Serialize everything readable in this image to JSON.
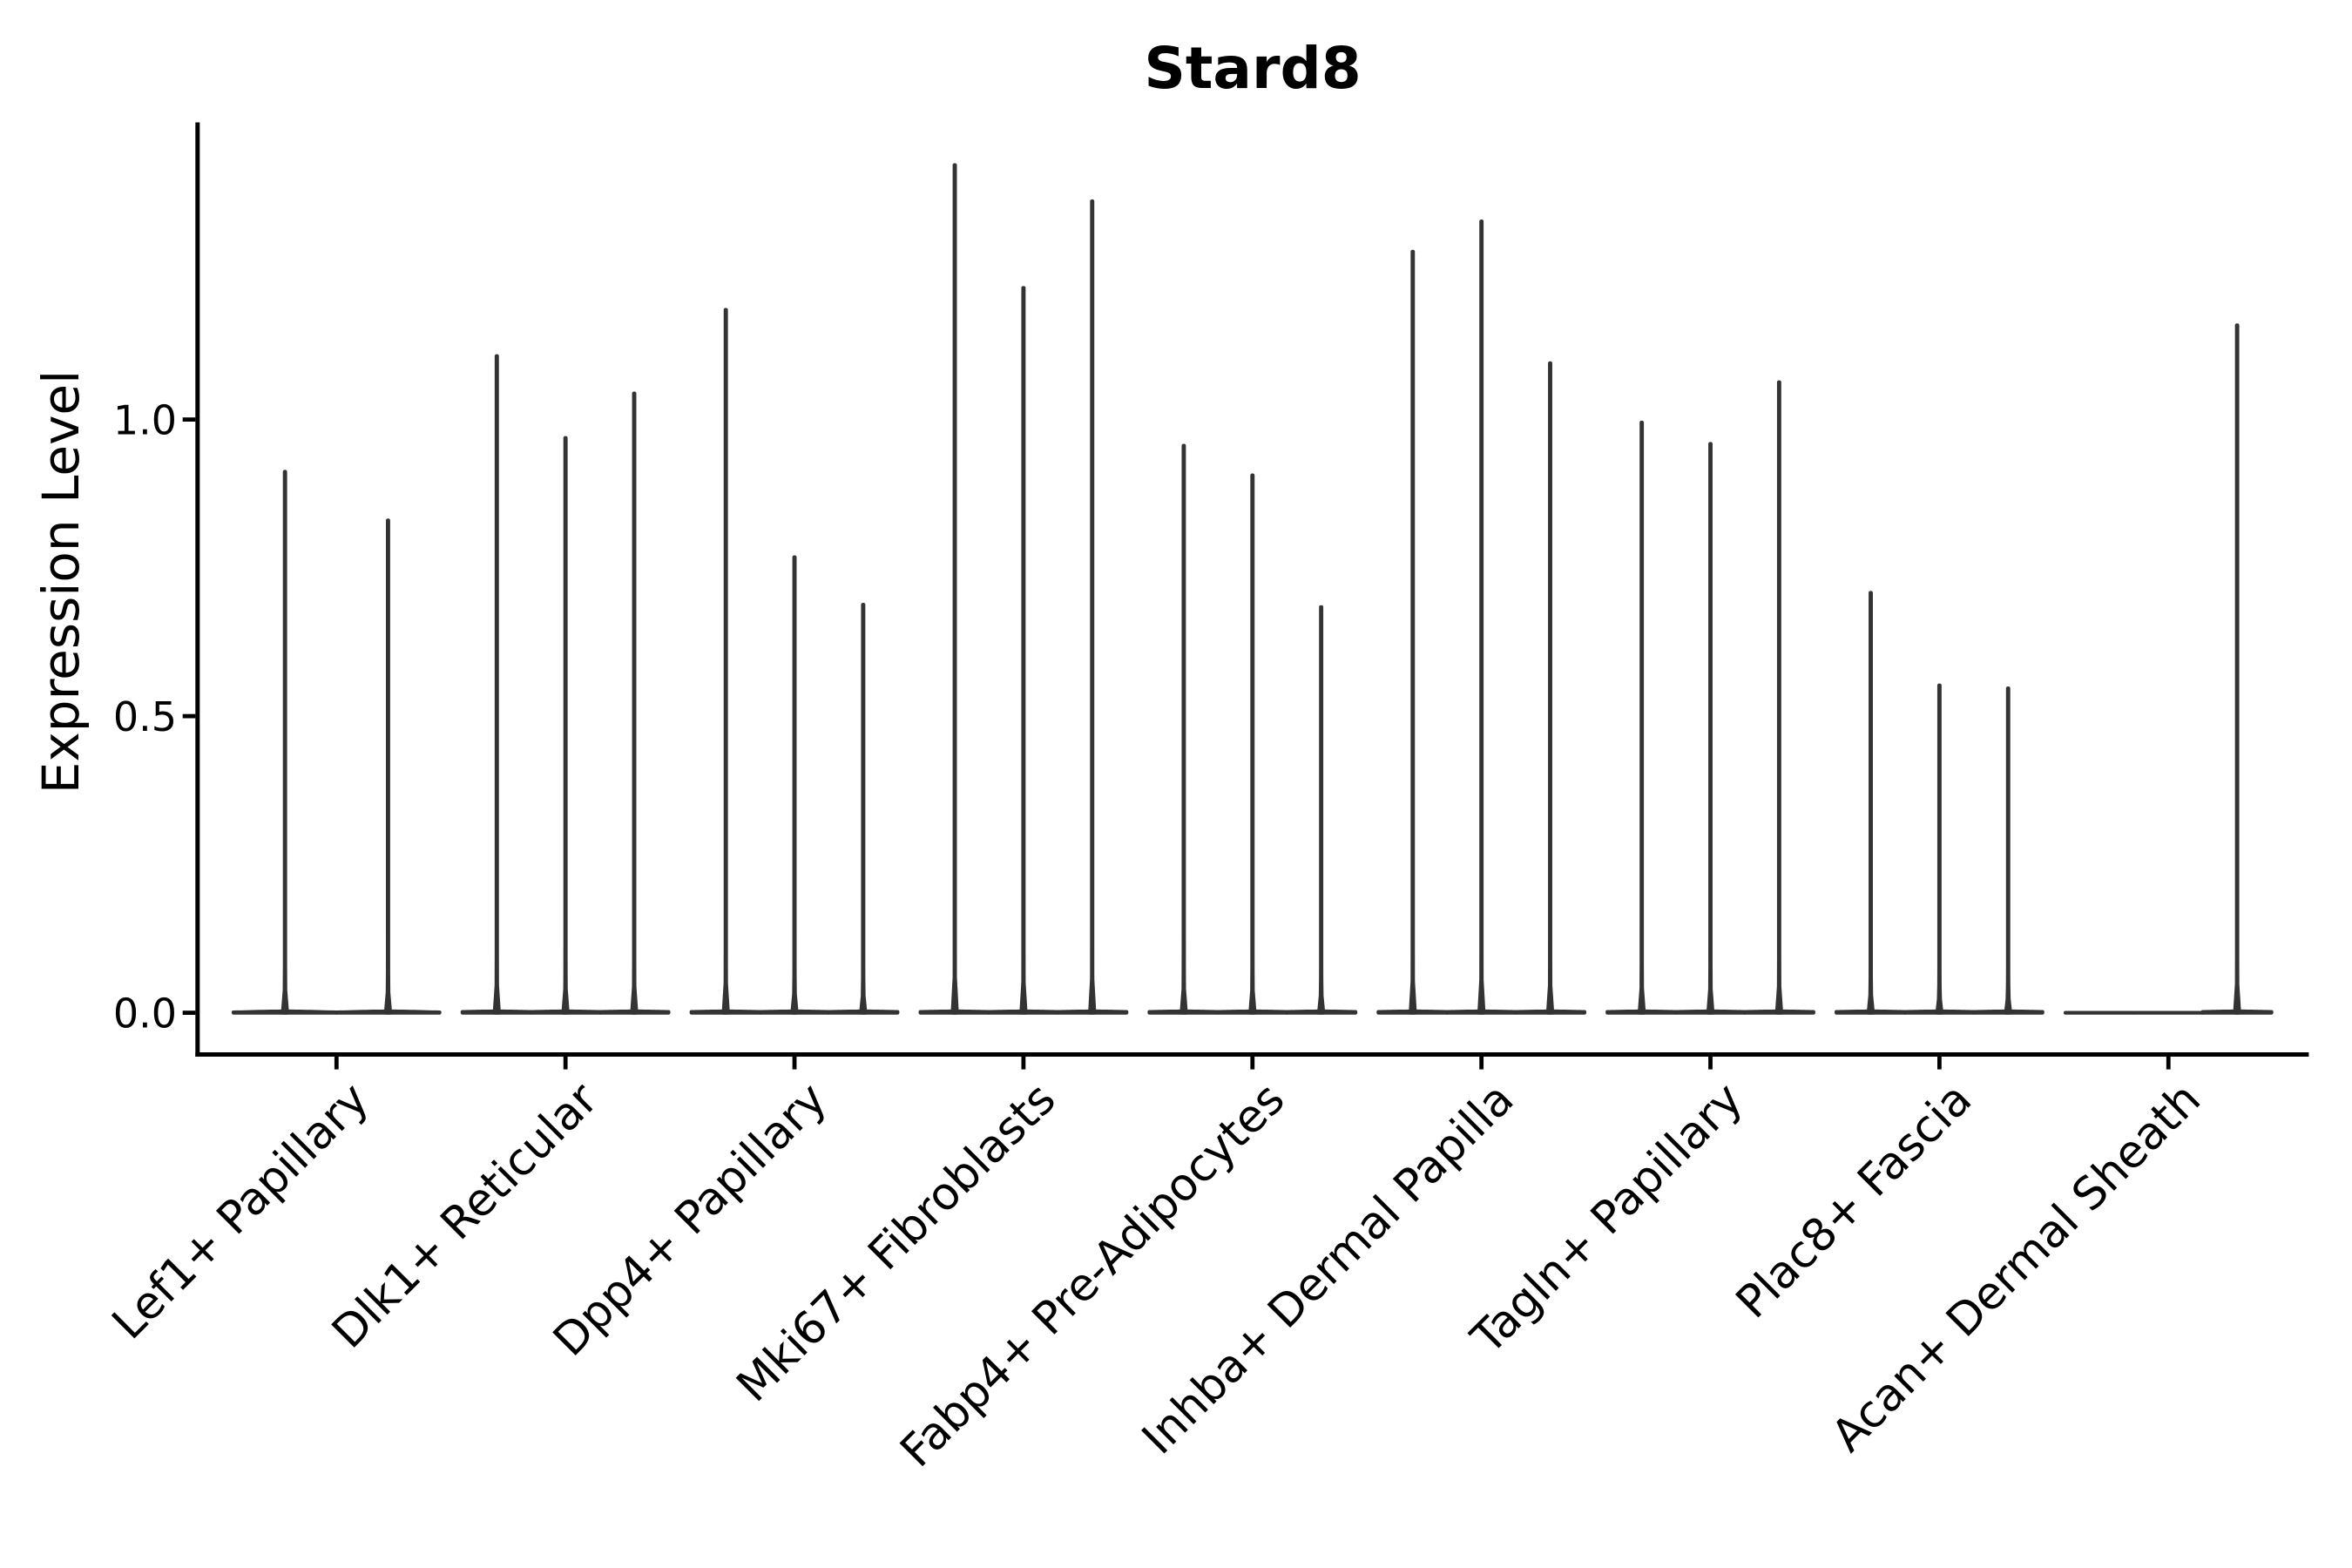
{
  "title": "Stard8",
  "axes": {
    "ylabel": "Expression Level",
    "xlabel": "",
    "ytick_labels": [
      "0.0",
      "0.5",
      "1.0"
    ],
    "ytick_values": [
      0.0,
      0.5,
      1.0
    ]
  },
  "chart_data": {
    "type": "violin",
    "title": "Stard8",
    "xlabel": "",
    "ylabel": "Expression Level",
    "categories": [
      "Lef1+ Papillary",
      "Dlk1+ Reticular",
      "Dpp4+ Papillary",
      "Mki67+ Fibroblasts",
      "Fabp4+ Pre-Adipocytes",
      "Inhba+ Dermal Papilla",
      "Tagln+ Papillary",
      "Plac8+ Fascia",
      "Acan+ Dermal Sheath"
    ],
    "violin_max_per_category": [
      [
        0.912,
        0.83
      ],
      [
        1.107,
        0.969,
        1.044
      ],
      [
        1.185,
        0.768,
        0.688
      ],
      [
        1.429,
        1.222,
        1.368
      ],
      [
        0.956,
        0.906,
        0.684
      ],
      [
        1.283,
        1.334,
        1.095
      ],
      [
        0.995,
        0.959,
        1.063
      ],
      [
        0.708,
        0.552,
        0.547
      ],
      [
        0.0,
        0.0,
        1.159
      ]
    ],
    "violin_shape_note": "expression density concentrated at 0 (wide flat base) with a thin spike up to the max value",
    "yticks": [
      0.0,
      0.5,
      1.0
    ],
    "ylim": [
      -0.0703,
      1.5008
    ],
    "grid": false,
    "legend": false
  },
  "style": {
    "background_color": "#ffffff",
    "violin_color": "#333333",
    "axis_color": "#000000",
    "text_color": "#000000"
  }
}
